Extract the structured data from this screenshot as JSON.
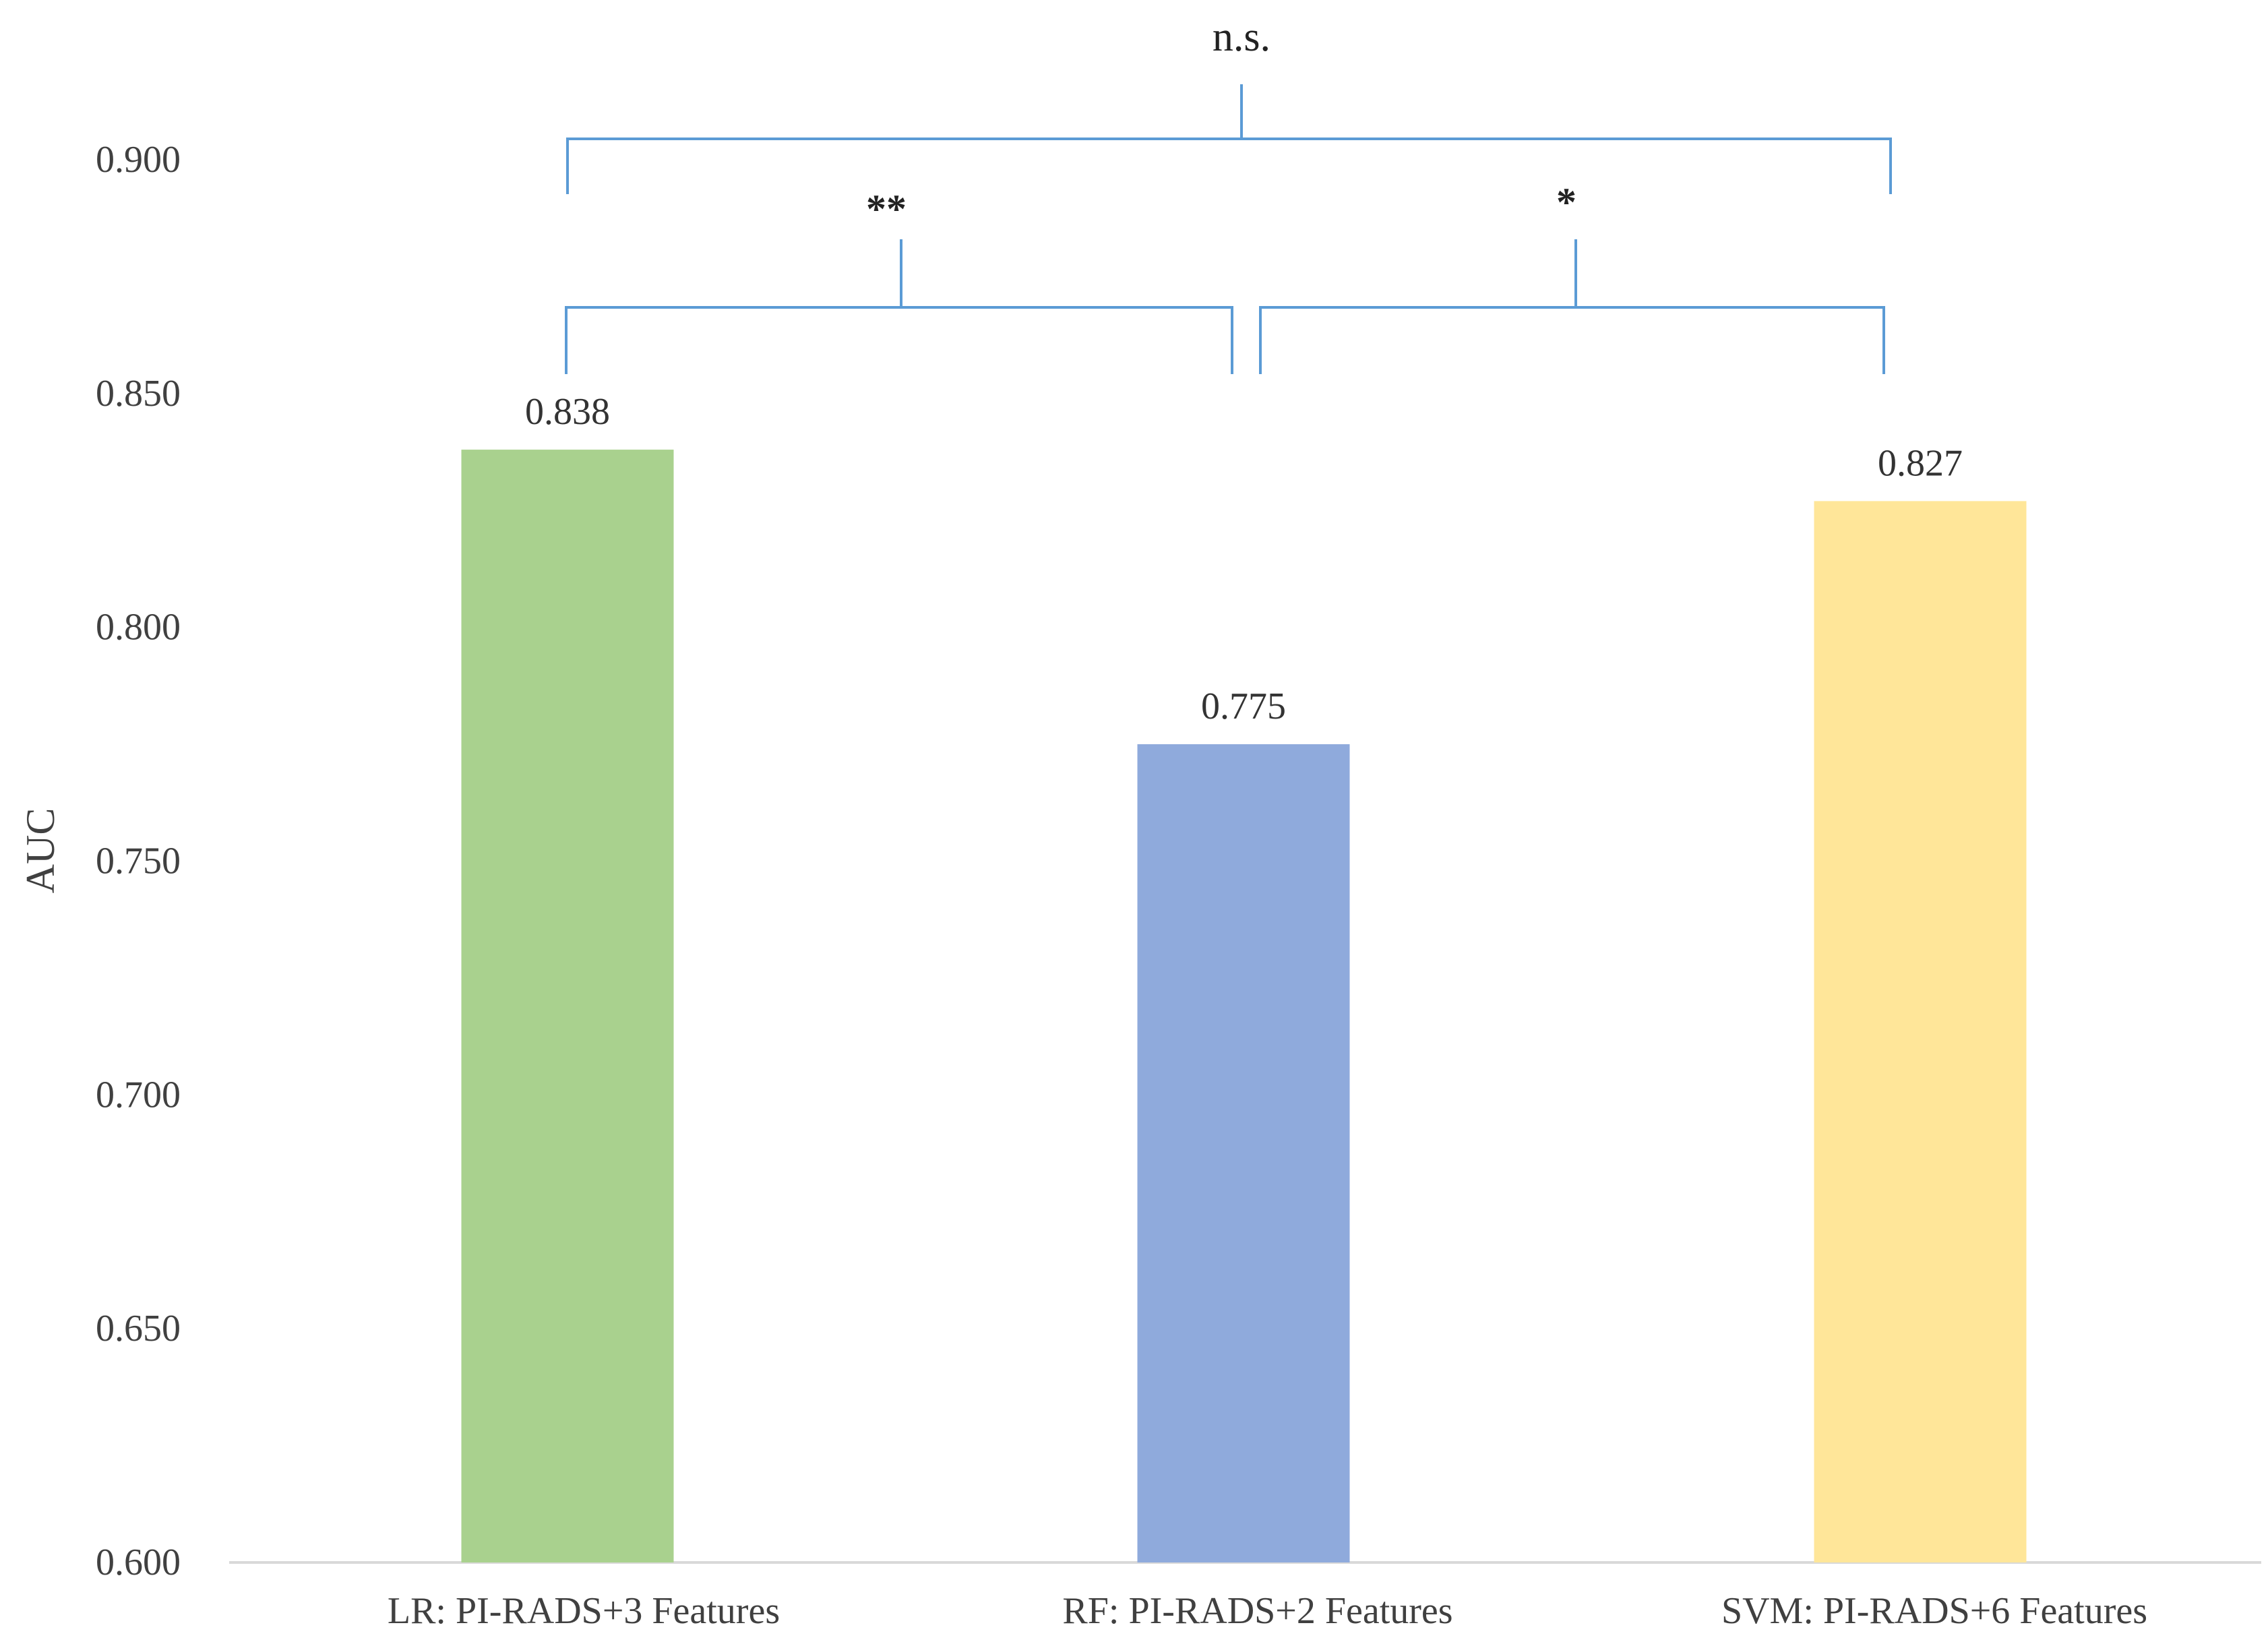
{
  "chart_data": {
    "type": "bar",
    "categories": [
      "LR: PI-RADS+3 Features",
      "RF: PI-RADS+2 Features",
      "SVM: PI-RADS+6 Features"
    ],
    "values": [
      0.838,
      0.775,
      0.827
    ],
    "value_labels": [
      "0.838",
      "0.775",
      "0.827"
    ],
    "bar_colors": [
      "#A9D18E",
      "#8FAADC",
      "#FFE699"
    ],
    "ylabel": "AUC",
    "ylim": [
      0.6,
      0.9
    ],
    "yticks": [
      "0.600",
      "0.650",
      "0.700",
      "0.750",
      "0.800",
      "0.850",
      "0.900"
    ],
    "grid": false,
    "bracket_color": "#5B9BD5",
    "significance": [
      {
        "from": 0,
        "to": 1,
        "label": "**"
      },
      {
        "from": 1,
        "to": 2,
        "label": "*"
      },
      {
        "from": 0,
        "to": 2,
        "label": "n.s."
      }
    ]
  }
}
